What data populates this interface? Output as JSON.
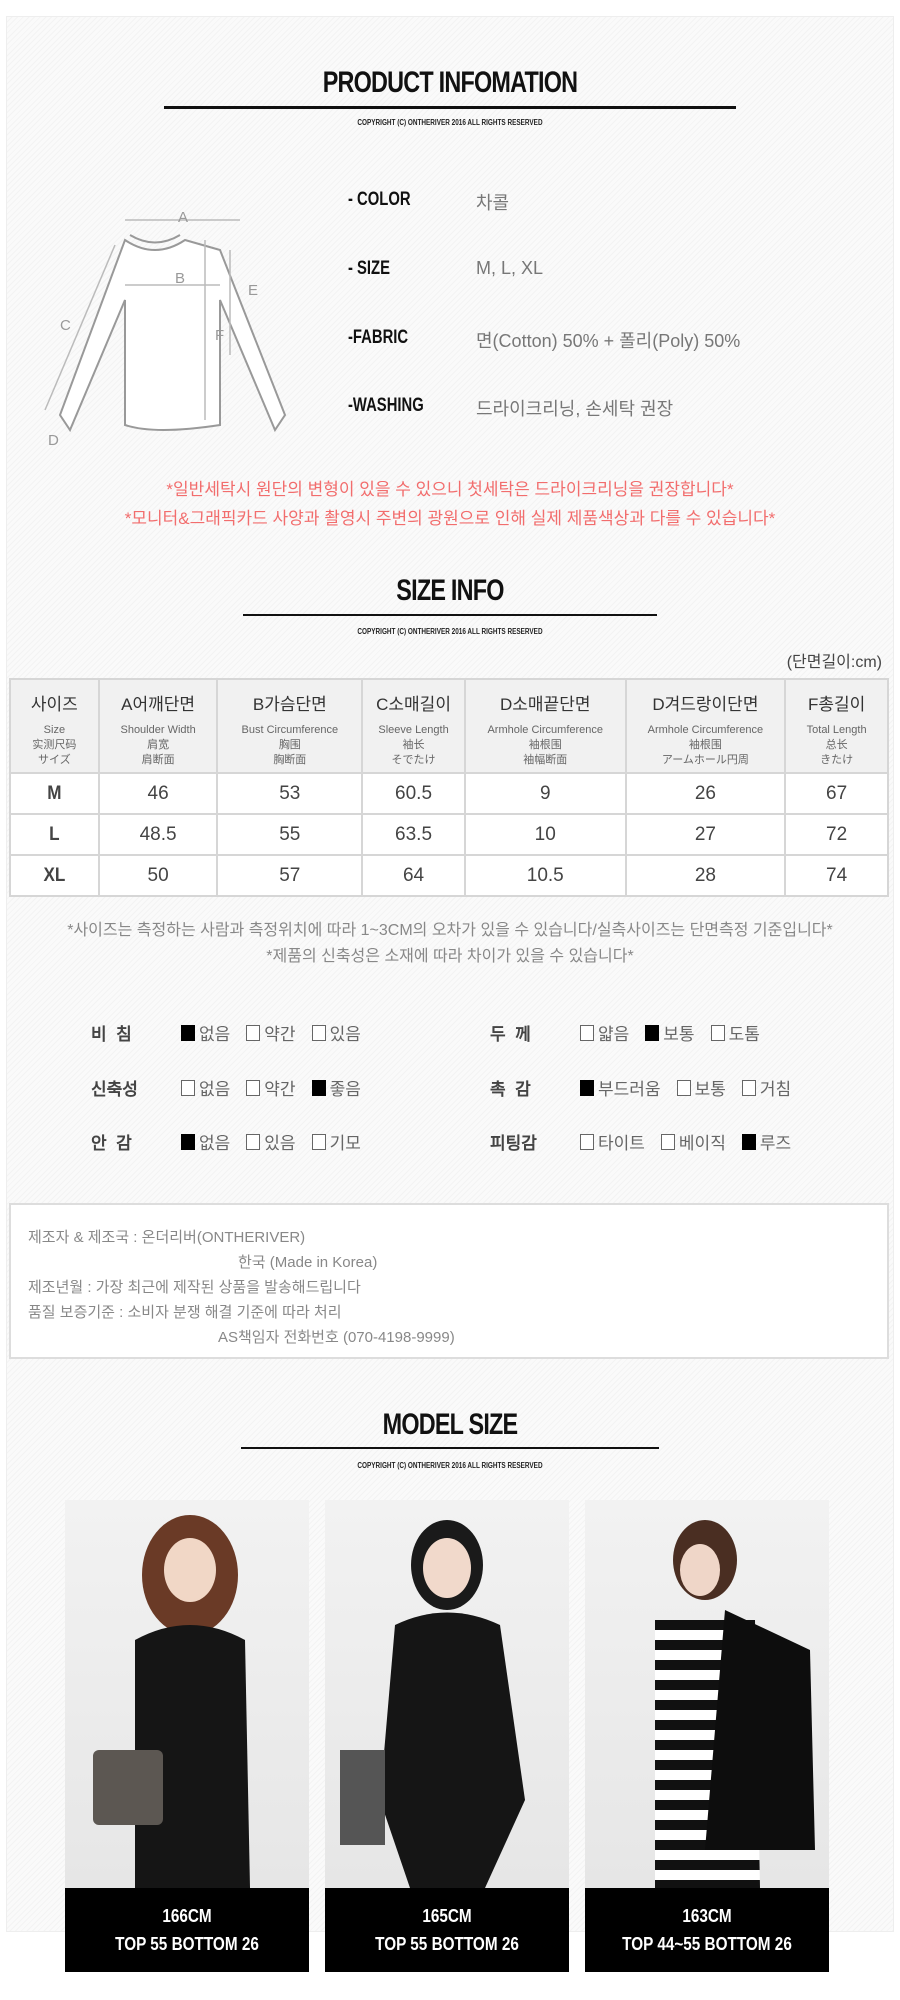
{
  "product_info": {
    "title": "PRODUCT INFOMATION",
    "copyright": "COPYRIGHT (C) ONTHERIVER 2016 ALL RIGHTS RESERVED",
    "diagram_labels": [
      "A",
      "B",
      "C",
      "D",
      "E",
      "F"
    ],
    "rows": [
      {
        "label": "- COLOR",
        "value": "차콜"
      },
      {
        "label": "- SIZE",
        "value": "M, L, XL"
      },
      {
        "label": "-FABRIC",
        "value": "면(Cotton) 50% + 폴리(Poly) 50%"
      },
      {
        "label": "-WASHING",
        "value": "드라이크리닝, 손세탁 권장"
      }
    ],
    "notices": [
      "*일반세탁시 원단의 변형이 있을 수 있으니 첫세탁은 드라이크리닝을 권장합니다*",
      "*모니터&그래픽카드 사양과 촬영시 주변의 광원으로 인해 실제 제품색상과 다를 수 있습니다*"
    ],
    "notice_color": "#f26d6d"
  },
  "size_info": {
    "title": "SIZE INFO",
    "copyright": "COPYRIGHT (C) ONTHERIVER 2016 ALL RIGHTS RESERVED",
    "unit": "(단면길이:cm)",
    "headers": [
      {
        "k": "사이즈",
        "s": [
          "Size",
          "实测尺码",
          "サイズ"
        ]
      },
      {
        "k": "A어깨단면",
        "s": [
          "Shoulder Width",
          "肩宽",
          "肩断面"
        ]
      },
      {
        "k": "B가슴단면",
        "s": [
          "Bust Circumference",
          "胸围",
          "胸断面"
        ]
      },
      {
        "k": "C소매길이",
        "s": [
          "Sleeve Length",
          "袖长",
          "そでたけ"
        ]
      },
      {
        "k": "D소매끝단면",
        "s": [
          "Armhole Circumference",
          "袖根围",
          "袖幅断面"
        ]
      },
      {
        "k": "D겨드랑이단면",
        "s": [
          "Armhole Circumference",
          "袖根围",
          "アームホール円周"
        ]
      },
      {
        "k": "F총길이",
        "s": [
          "Total Length",
          "总长",
          "きたけ"
        ]
      }
    ],
    "rows": [
      [
        "M",
        "46",
        "53",
        "60.5",
        "9",
        "26",
        "67"
      ],
      [
        "L",
        "48.5",
        "55",
        "63.5",
        "10",
        "27",
        "72"
      ],
      [
        "XL",
        "50",
        "57",
        "64",
        "10.5",
        "28",
        "74"
      ]
    ],
    "notes": [
      "*사이즈는 측정하는 사람과 측정위치에 따라 1~3CM의 오차가 있을 수 있습니다/실측사이즈는 단면측정 기준입니다*",
      "*제품의 신축성은 소재에 따라 차이가 있을 수 있습니다*"
    ]
  },
  "attributes": [
    {
      "label": "비  침",
      "options": [
        "없음",
        "약간",
        "있음"
      ],
      "selected": 0
    },
    {
      "label": "두  께",
      "options": [
        "얇음",
        "보통",
        "도톰"
      ],
      "selected": 1
    },
    {
      "label": "신축성",
      "options": [
        "없음",
        "약간",
        "좋음"
      ],
      "selected": 2
    },
    {
      "label": "촉  감",
      "options": [
        "부드러움",
        "보통",
        "거침"
      ],
      "selected": 0
    },
    {
      "label": "안  감",
      "options": [
        "없음",
        "있음",
        "기모"
      ],
      "selected": 0
    },
    {
      "label": "피팅감",
      "options": [
        "타이트",
        "베이직",
        "루즈"
      ],
      "selected": 2
    }
  ],
  "maker_info": [
    "제조자 & 제조국 : 온더리버(ONTHERIVER)",
    "한국 (Made in Korea)",
    "제조년월 : 가장 최근에 제작된 상품을 발송해드립니다",
    "품질 보증기준 : 소비자 분쟁 해결 기준에 따라 처리",
    "AS책임자 전화번호 (070-4198-9999)"
  ],
  "model_size": {
    "title": "MODEL SIZE",
    "copyright": "COPYRIGHT (C) ONTHERIVER 2016 ALL RIGHTS RESERVED",
    "models": [
      {
        "height": "166CM",
        "size": "TOP 55 BOTTOM 26"
      },
      {
        "height": "165CM",
        "size": "TOP 55 BOTTOM 26"
      },
      {
        "height": "163CM",
        "size": "TOP 44~55 BOTTOM 26"
      }
    ]
  }
}
